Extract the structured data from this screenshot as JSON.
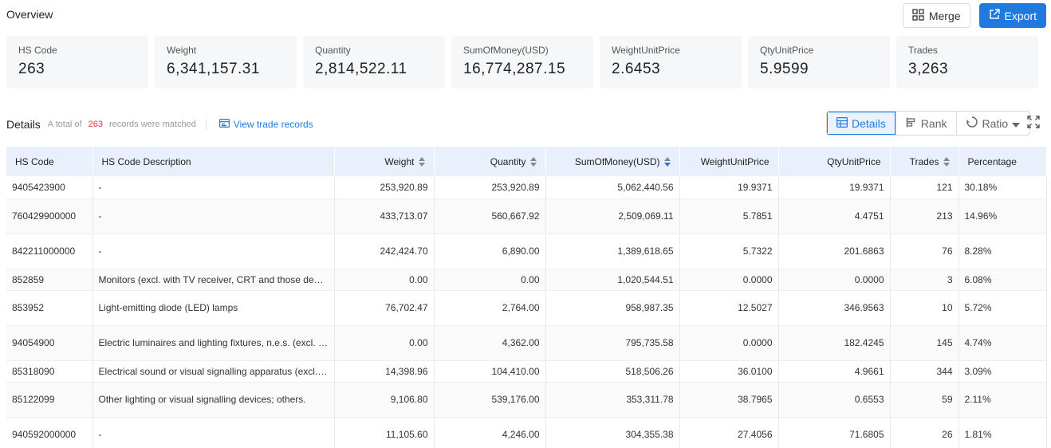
{
  "overview": {
    "title": "Overview"
  },
  "actions": {
    "merge_label": "Merge",
    "export_label": "Export"
  },
  "cards": [
    {
      "label": "HS Code",
      "value": "263"
    },
    {
      "label": "Weight",
      "value": "6,341,157.31"
    },
    {
      "label": "Quantity",
      "value": "2,814,522.11"
    },
    {
      "label": "SumOfMoney(USD)",
      "value": "16,774,287.15"
    },
    {
      "label": "WeightUnitPrice",
      "value": "2.6453"
    },
    {
      "label": "QtyUnitPrice",
      "value": "5.9599"
    },
    {
      "label": "Trades",
      "value": "3,263"
    }
  ],
  "details": {
    "title": "Details",
    "meta_prefix": "A total of",
    "count": "263",
    "meta_suffix": "records were matched",
    "view_link": "View trade records"
  },
  "view_switch": {
    "details": "Details",
    "rank": "Rank",
    "ratio": "Ratio"
  },
  "table": {
    "headers": {
      "hs_code": "HS Code",
      "description": "HS Code Description",
      "weight": "Weight",
      "quantity": "Quantity",
      "sum": "SumOfMoney(USD)",
      "wup": "WeightUnitPrice",
      "qup": "QtyUnitPrice",
      "trades": "Trades",
      "percentage": "Percentage"
    },
    "rows": [
      {
        "hs_code": "9405423900",
        "description": "-",
        "weight": "253,920.89",
        "quantity": "253,920.89",
        "sum": "5,062,440.56",
        "wup": "19.9371",
        "qup": "19.9371",
        "trades": "121",
        "percentage": "30.18%"
      },
      {
        "hs_code": "760429900000",
        "description": "-",
        "weight": "433,713.07",
        "quantity": "560,667.92",
        "sum": "2,509,069.11",
        "wup": "5.7851",
        "qup": "4.4751",
        "trades": "213",
        "percentage": "14.96%"
      },
      {
        "hs_code": "842211000000",
        "description": "-",
        "weight": "242,424.70",
        "quantity": "6,890.00",
        "sum": "1,389,618.65",
        "wup": "5.7322",
        "qup": "201.6863",
        "trades": "76",
        "percentage": "8.28%"
      },
      {
        "hs_code": "852859",
        "description": "Monitors (excl. with TV receiver, CRT and those designed for use with computers)",
        "weight": "0.00",
        "quantity": "0.00",
        "sum": "1,020,544.51",
        "wup": "0.0000",
        "qup": "0.0000",
        "trades": "3",
        "percentage": "6.08%"
      },
      {
        "hs_code": "853952",
        "description": "Light-emitting diode (LED) lamps",
        "weight": "76,702.47",
        "quantity": "2,764.00",
        "sum": "958,987.35",
        "wup": "12.5027",
        "qup": "346.9563",
        "trades": "10",
        "percentage": "5.72%"
      },
      {
        "hs_code": "94054900",
        "description": "Electric luminaires and lighting fixtures, n.e.s. (excl. of base metal)",
        "weight": "0.00",
        "quantity": "4,362.00",
        "sum": "795,735.58",
        "wup": "0.0000",
        "qup": "182.4245",
        "trades": "145",
        "percentage": "4.74%"
      },
      {
        "hs_code": "85318090",
        "description": "Electrical sound or visual signalling apparatus (excl. indicator panels)",
        "weight": "14,398.96",
        "quantity": "104,410.00",
        "sum": "518,506.26",
        "wup": "36.0100",
        "qup": "4.9661",
        "trades": "344",
        "percentage": "3.09%"
      },
      {
        "hs_code": "85122099",
        "description": "Other lighting or visual signalling devices; others.",
        "weight": "9,106.80",
        "quantity": "539,176.00",
        "sum": "353,311.78",
        "wup": "38.7965",
        "qup": "0.6553",
        "trades": "59",
        "percentage": "2.11%"
      },
      {
        "hs_code": "940592000000",
        "description": "-",
        "weight": "11,105.60",
        "quantity": "4,246.00",
        "sum": "304,355.38",
        "wup": "27.4056",
        "qup": "71.6805",
        "trades": "26",
        "percentage": "1.81%"
      }
    ]
  }
}
